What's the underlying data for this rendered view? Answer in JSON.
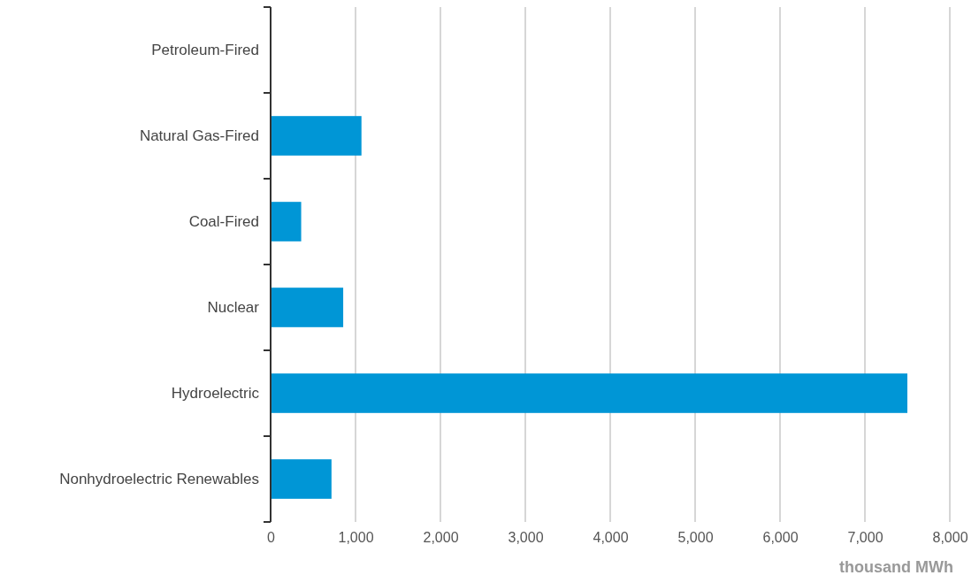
{
  "chart_data": {
    "type": "bar",
    "orientation": "horizontal",
    "xlabel": "thousand MWh",
    "categories": [
      "Petroleum-Fired",
      "Natural Gas-Fired",
      "Coal-Fired",
      "Nuclear",
      "Hydroelectric",
      "Nonhydroelectric Renewables"
    ],
    "values": [
      0,
      1070,
      360,
      855,
      7500,
      717
    ],
    "color": "#0096d6",
    "xlim": [
      0,
      8000
    ],
    "xticks": [
      {
        "value": 0,
        "label": "0"
      },
      {
        "value": 1000,
        "label": "1,000"
      },
      {
        "value": 2000,
        "label": "2,000"
      },
      {
        "value": 3000,
        "label": "3,000"
      },
      {
        "value": 4000,
        "label": "4,000"
      },
      {
        "value": 5000,
        "label": "5,000"
      },
      {
        "value": 6000,
        "label": "6,000"
      },
      {
        "value": 7000,
        "label": "7,000"
      },
      {
        "value": 8000,
        "label": "8,000"
      }
    ],
    "grid": "x"
  }
}
